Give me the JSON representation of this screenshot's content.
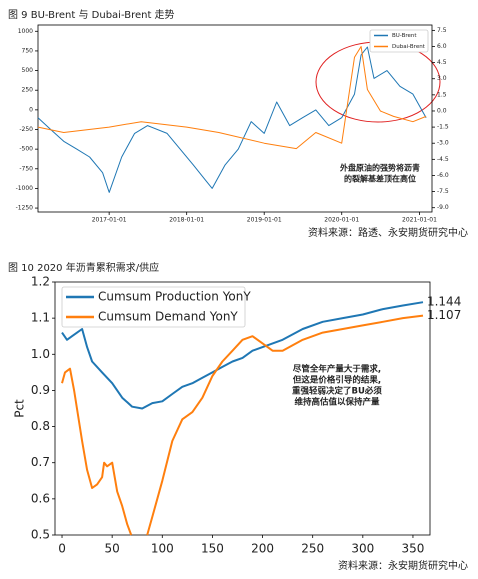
{
  "chart_data": [
    {
      "type": "line",
      "title": "图 9 BU-Brent 与 Dubai-Brent 走势",
      "source": "资料来源：路透、永安期货研究中心",
      "xlim": [
        "2016-02-01",
        "2021-03-01"
      ],
      "xticks": [
        "2017-01-01",
        "2018-01-01",
        "2019-01-01",
        "2020-01-01",
        "2021-01-01"
      ],
      "ylim": [
        -1300,
        1080
      ],
      "yticks": [
        1000,
        750,
        500,
        250,
        0,
        -250,
        -500,
        -750,
        -1000,
        -1250
      ],
      "y2lim": [
        -9.4,
        8.0
      ],
      "y2ticks": [
        7.5,
        {
          "value": 6,
          "label": "6.0"
        },
        4.5,
        {
          "value": 3,
          "label": "3.0"
        },
        1.5,
        {
          "value": 0,
          "label": "0.0"
        },
        -1.5,
        {
          "value": -3,
          "label": "-3.0"
        },
        -4.5,
        {
          "value": -6,
          "label": "-6.0"
        },
        -7.5,
        {
          "value": -9,
          "label": "-9.0"
        }
      ],
      "legend": "upper right",
      "grid": false,
      "annotation": [
        "外盘原油的强势将沥青",
        "的裂解基差顶在高位"
      ],
      "series": [
        {
          "name": "BU-Brent",
          "color": "#1f77b4",
          "x": [
            "2016-02-01",
            "2016-04-01",
            "2016-06-01",
            "2016-08-01",
            "2016-10-01",
            "2016-12-01",
            "2017-01-01",
            "2017-03-01",
            "2017-05-01",
            "2017-07-01",
            "2017-10-01",
            "2017-12-01",
            "2018-02-01",
            "2018-04-01",
            "2018-05-01",
            "2018-07-01",
            "2018-09-01",
            "2018-11-01",
            "2019-01-01",
            "2019-03-01",
            "2019-05-01",
            "2019-07-01",
            "2019-09-01",
            "2019-11-01",
            "2020-01-01",
            "2020-03-01",
            "2020-04-01",
            "2020-05-01",
            "2020-06-01",
            "2020-08-01",
            "2020-10-01",
            "2020-12-01",
            "2021-02-01"
          ],
          "values": [
            -100,
            -250,
            -400,
            -500,
            -600,
            -800,
            -1050,
            -600,
            -300,
            -200,
            -300,
            -500,
            -700,
            -900,
            -1000,
            -700,
            -500,
            -150,
            -300,
            100,
            -200,
            -100,
            0,
            -200,
            -100,
            200,
            700,
            800,
            400,
            500,
            300,
            200,
            -100
          ]
        },
        {
          "name": "Dubai-Brent",
          "color": "#ff7f0e",
          "axis": "y2",
          "x": [
            "2016-02-01",
            "2016-06-01",
            "2017-01-01",
            "2017-06-01",
            "2018-01-01",
            "2018-06-01",
            "2019-01-01",
            "2019-06-01",
            "2019-09-01",
            "2020-01-01",
            "2020-03-01",
            "2020-04-01",
            "2020-05-01",
            "2020-07-01",
            "2020-09-01",
            "2020-12-01",
            "2021-02-01"
          ],
          "values": [
            -1.5,
            -2,
            -1.5,
            -1,
            -1.5,
            -2,
            -3,
            -3.5,
            -2,
            -3,
            5,
            6,
            2,
            0,
            -0.5,
            -1,
            -0.5
          ]
        }
      ]
    },
    {
      "type": "line",
      "title": "图 10 2020 年沥青累积需求/供应",
      "source": "资料来源：永安期货研究中心",
      "ylabel": "Pct",
      "xlim": [
        -7,
        367
      ],
      "xticks": [
        0,
        50,
        100,
        150,
        200,
        250,
        300,
        350
      ],
      "ylim": [
        0.5,
        1.2
      ],
      "yticks": [
        0.5,
        0.6,
        0.7,
        0.8,
        0.9,
        {
          "value": 1,
          "label": "1.0"
        },
        1.1,
        1.2
      ],
      "legend": "upper left",
      "grid": false,
      "end_labels": true,
      "annotation": [
        "尽管全年产量大于需求,",
        "但这是价格引导的结果,",
        "重强轻弱决定了BU必须",
        "维持高估值以保持产量"
      ],
      "series": [
        {
          "name": "Cumsum Production YonY",
          "color": "#1f77b4",
          "x": [
            0,
            5,
            10,
            15,
            20,
            25,
            30,
            40,
            50,
            60,
            70,
            80,
            90,
            100,
            110,
            120,
            130,
            140,
            150,
            160,
            170,
            180,
            190,
            200,
            220,
            240,
            260,
            280,
            300,
            320,
            340,
            360
          ],
          "values": [
            1.06,
            1.04,
            1.05,
            1.06,
            1.07,
            1.02,
            0.98,
            0.95,
            0.92,
            0.88,
            0.855,
            0.85,
            0.865,
            0.87,
            0.89,
            0.91,
            0.92,
            0.935,
            0.95,
            0.965,
            0.98,
            0.99,
            1.01,
            1.02,
            1.04,
            1.07,
            1.09,
            1.1,
            1.11,
            1.125,
            1.135,
            1.144
          ]
        },
        {
          "name": "Cumsum Demand YonY",
          "color": "#ff7f0e",
          "x": [
            0,
            3,
            8,
            12,
            20,
            25,
            30,
            35,
            40,
            42,
            45,
            50,
            55,
            60,
            65,
            69,
            75,
            85,
            90,
            100,
            110,
            120,
            130,
            140,
            150,
            160,
            170,
            180,
            190,
            200,
            210,
            220,
            240,
            260,
            280,
            300,
            320,
            340,
            360
          ],
          "values": [
            0.92,
            0.95,
            0.96,
            0.9,
            0.76,
            0.68,
            0.63,
            0.64,
            0.66,
            0.7,
            0.69,
            0.7,
            0.62,
            0.58,
            0.53,
            0.5,
            null,
            0.5,
            0.55,
            0.65,
            0.76,
            0.82,
            0.84,
            0.88,
            0.94,
            0.98,
            1.01,
            1.04,
            1.05,
            1.03,
            1.01,
            1.01,
            1.04,
            1.06,
            1.07,
            1.08,
            1.09,
            1.1,
            1.107
          ]
        }
      ]
    }
  ]
}
